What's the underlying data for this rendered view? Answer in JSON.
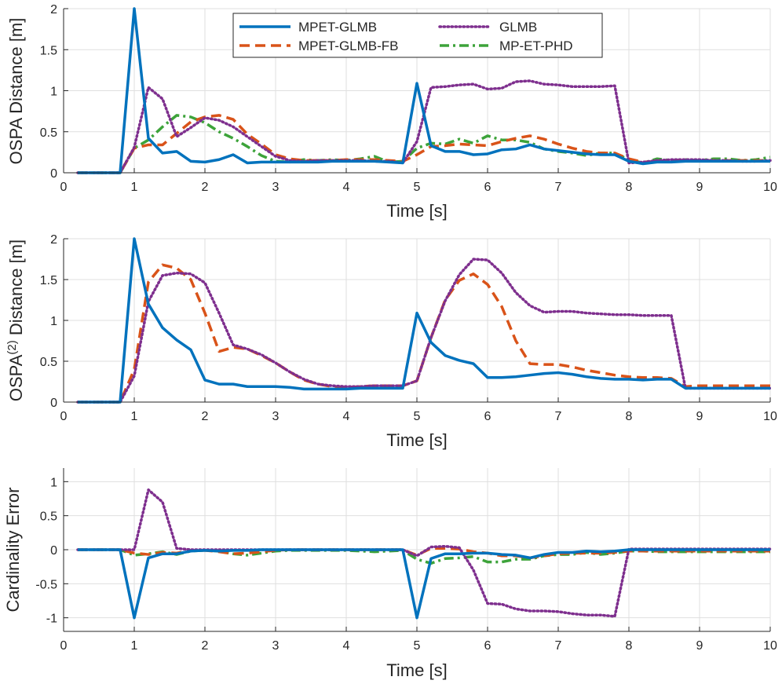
{
  "colors": {
    "mpet_glmb": "#0072BD",
    "mpet_glmb_fb": "#D95319",
    "glmb": "#7E2F8E",
    "mp_et_phd": "#3DA33A",
    "grid": "#dfdfdf",
    "axis": "#262626"
  },
  "legend": {
    "labels": [
      "MPET-GLMB",
      "GLMB",
      "MPET-GLMB-FB",
      "MP-ET-PHD"
    ]
  },
  "chart_data": [
    {
      "type": "line",
      "xlabel": "Time [s]",
      "ylabel": "OSPA Distance [m]",
      "ylabel_parts": {
        "main": "OSPA Distance [m]"
      },
      "xlim": [
        0,
        10
      ],
      "ylim": [
        0,
        2
      ],
      "xticks": [
        "0",
        "1",
        "2",
        "3",
        "4",
        "5",
        "6",
        "7",
        "8",
        "9",
        "10"
      ],
      "yticks": [
        "0",
        "0.5",
        "1",
        "1.5",
        "2"
      ],
      "ytick_values": [
        0,
        0.5,
        1,
        1.5,
        2
      ],
      "grid": true,
      "legend_position": "top-center",
      "x": [
        0.2,
        0.4,
        0.6,
        0.8,
        1.0,
        1.2,
        1.4,
        1.6,
        1.8,
        2.0,
        2.2,
        2.4,
        2.6,
        2.8,
        3.0,
        3.2,
        3.4,
        3.6,
        3.8,
        4.0,
        4.2,
        4.4,
        4.6,
        4.8,
        5.0,
        5.2,
        5.4,
        5.6,
        5.8,
        6.0,
        6.2,
        6.4,
        6.6,
        6.8,
        7.0,
        7.2,
        7.4,
        7.6,
        7.8,
        8.0,
        8.2,
        8.4,
        8.6,
        8.8,
        9.0,
        9.2,
        9.4,
        9.6,
        9.8,
        10.0
      ],
      "series": [
        {
          "name": "MPET-GLMB",
          "key": "mpet_glmb",
          "values": [
            0,
            0,
            0,
            0,
            2.0,
            0.42,
            0.24,
            0.26,
            0.14,
            0.13,
            0.16,
            0.22,
            0.12,
            0.13,
            0.13,
            0.13,
            0.13,
            0.13,
            0.14,
            0.14,
            0.14,
            0.14,
            0.13,
            0.12,
            1.09,
            0.33,
            0.26,
            0.26,
            0.22,
            0.23,
            0.28,
            0.29,
            0.34,
            0.29,
            0.27,
            0.25,
            0.23,
            0.22,
            0.22,
            0.14,
            0.11,
            0.13,
            0.13,
            0.14,
            0.14,
            0.14,
            0.14,
            0.14,
            0.14,
            0.14
          ]
        },
        {
          "name": "MPET-GLMB-FB",
          "key": "mpet_glmb_fb",
          "values": [
            0,
            0,
            0,
            0,
            0.3,
            0.34,
            0.34,
            0.48,
            0.62,
            0.68,
            0.7,
            0.65,
            0.47,
            0.35,
            0.22,
            0.17,
            0.15,
            0.15,
            0.15,
            0.16,
            0.16,
            0.16,
            0.15,
            0.14,
            0.22,
            0.32,
            0.33,
            0.35,
            0.34,
            0.33,
            0.38,
            0.42,
            0.45,
            0.41,
            0.35,
            0.3,
            0.26,
            0.24,
            0.24,
            0.17,
            0.13,
            0.14,
            0.15,
            0.15,
            0.15,
            0.15,
            0.15,
            0.15,
            0.15,
            0.15
          ]
        },
        {
          "name": "GLMB",
          "key": "glmb",
          "values": [
            0,
            0,
            0,
            0,
            0.31,
            1.04,
            0.9,
            0.44,
            0.55,
            0.67,
            0.64,
            0.56,
            0.44,
            0.32,
            0.2,
            0.15,
            0.14,
            0.15,
            0.15,
            0.15,
            0.15,
            0.14,
            0.14,
            0.12,
            0.38,
            1.04,
            1.05,
            1.07,
            1.08,
            1.02,
            1.03,
            1.11,
            1.12,
            1.08,
            1.07,
            1.05,
            1.05,
            1.05,
            1.06,
            0.12,
            0.13,
            0.15,
            0.16,
            0.16,
            0.16,
            0.15,
            0.15,
            0.14,
            0.14,
            0.15
          ]
        },
        {
          "name": "MP-ET-PHD",
          "key": "mp_et_phd",
          "values": [
            0,
            0,
            0,
            0,
            0.3,
            0.4,
            0.56,
            0.7,
            0.68,
            0.61,
            0.5,
            0.42,
            0.32,
            0.21,
            0.14,
            0.13,
            0.16,
            0.15,
            0.16,
            0.15,
            0.17,
            0.2,
            0.13,
            0.14,
            0.3,
            0.36,
            0.35,
            0.41,
            0.36,
            0.45,
            0.4,
            0.4,
            0.37,
            0.29,
            0.26,
            0.24,
            0.21,
            0.24,
            0.24,
            0.16,
            0.12,
            0.17,
            0.15,
            0.16,
            0.15,
            0.17,
            0.17,
            0.15,
            0.16,
            0.19
          ]
        }
      ]
    },
    {
      "type": "line",
      "xlabel": "Time [s]",
      "ylabel": "OSPA(2) Distance [m]",
      "ylabel_parts": {
        "pre": "OSPA",
        "sup": "(2)",
        "post": " Distance [m]"
      },
      "xlim": [
        0,
        10
      ],
      "ylim": [
        0,
        2
      ],
      "xticks": [
        "0",
        "1",
        "2",
        "3",
        "4",
        "5",
        "6",
        "7",
        "8",
        "9",
        "10"
      ],
      "yticks": [
        "0",
        "0.5",
        "1",
        "1.5",
        "2"
      ],
      "ytick_values": [
        0,
        0.5,
        1,
        1.5,
        2
      ],
      "grid": true,
      "x": [
        0.2,
        0.4,
        0.6,
        0.8,
        1.0,
        1.2,
        1.4,
        1.6,
        1.8,
        2.0,
        2.2,
        2.4,
        2.6,
        2.8,
        3.0,
        3.2,
        3.4,
        3.6,
        3.8,
        4.0,
        4.2,
        4.4,
        4.6,
        4.8,
        5.0,
        5.2,
        5.4,
        5.6,
        5.8,
        6.0,
        6.2,
        6.4,
        6.6,
        6.8,
        7.0,
        7.2,
        7.4,
        7.6,
        7.8,
        8.0,
        8.2,
        8.4,
        8.6,
        8.8,
        9.0,
        9.2,
        9.4,
        9.6,
        9.8,
        10.0
      ],
      "series": [
        {
          "name": "MPET-GLMB",
          "key": "mpet_glmb",
          "values": [
            0,
            0,
            0,
            0,
            2.0,
            1.2,
            0.91,
            0.76,
            0.64,
            0.27,
            0.22,
            0.22,
            0.19,
            0.19,
            0.19,
            0.18,
            0.16,
            0.16,
            0.16,
            0.16,
            0.17,
            0.17,
            0.17,
            0.17,
            1.09,
            0.73,
            0.57,
            0.51,
            0.47,
            0.3,
            0.3,
            0.31,
            0.33,
            0.35,
            0.36,
            0.34,
            0.31,
            0.29,
            0.28,
            0.28,
            0.27,
            0.28,
            0.28,
            0.17,
            0.17,
            0.17,
            0.17,
            0.17,
            0.17,
            0.17
          ]
        },
        {
          "name": "MPET-GLMB-FB",
          "key": "mpet_glmb_fb",
          "values": [
            0,
            0,
            0,
            0,
            0.4,
            1.47,
            1.68,
            1.64,
            1.5,
            1.09,
            0.62,
            0.67,
            0.65,
            0.57,
            0.48,
            0.37,
            0.27,
            0.22,
            0.19,
            0.18,
            0.19,
            0.2,
            0.2,
            0.2,
            0.26,
            0.79,
            1.25,
            1.49,
            1.57,
            1.44,
            1.17,
            0.75,
            0.47,
            0.46,
            0.46,
            0.43,
            0.39,
            0.36,
            0.33,
            0.31,
            0.3,
            0.3,
            0.29,
            0.19,
            0.2,
            0.2,
            0.2,
            0.2,
            0.2,
            0.2
          ]
        },
        {
          "name": "GLMB",
          "key": "glmb",
          "values": [
            0,
            0,
            0,
            0,
            0.32,
            1.23,
            1.55,
            1.58,
            1.57,
            1.46,
            1.09,
            0.7,
            0.65,
            0.58,
            0.48,
            0.37,
            0.28,
            0.22,
            0.2,
            0.19,
            0.19,
            0.2,
            0.2,
            0.2,
            0.26,
            0.79,
            1.24,
            1.56,
            1.75,
            1.74,
            1.58,
            1.34,
            1.18,
            1.1,
            1.11,
            1.11,
            1.09,
            1.08,
            1.07,
            1.07,
            1.06,
            1.06,
            1.06,
            0.17,
            0.17,
            0.17,
            0.17,
            0.17,
            0.17,
            0.17
          ]
        }
      ]
    },
    {
      "type": "line",
      "xlabel": "Time [s]",
      "ylabel": "Cardinality Error",
      "ylabel_parts": {
        "main": "Cardinality Error"
      },
      "xlim": [
        0,
        10
      ],
      "ylim": [
        -1.2,
        1.2
      ],
      "xticks": [
        "0",
        "1",
        "2",
        "3",
        "4",
        "5",
        "6",
        "7",
        "8",
        "9",
        "10"
      ],
      "yticks": [
        "-1",
        "-0.5",
        "0",
        "0.5",
        "1"
      ],
      "ytick_values": [
        -1,
        -0.5,
        0,
        0.5,
        1
      ],
      "grid": true,
      "x": [
        0.2,
        0.4,
        0.6,
        0.8,
        1.0,
        1.2,
        1.4,
        1.6,
        1.8,
        2.0,
        2.2,
        2.4,
        2.6,
        2.8,
        3.0,
        3.2,
        3.4,
        3.6,
        3.8,
        4.0,
        4.2,
        4.4,
        4.6,
        4.8,
        5.0,
        5.2,
        5.4,
        5.6,
        5.8,
        6.0,
        6.2,
        6.4,
        6.6,
        6.8,
        7.0,
        7.2,
        7.4,
        7.6,
        7.8,
        8.0,
        8.2,
        8.4,
        8.6,
        8.8,
        9.0,
        9.2,
        9.4,
        9.6,
        9.8,
        10.0
      ],
      "series": [
        {
          "name": "MPET-GLMB",
          "key": "mpet_glmb",
          "values": [
            0,
            0,
            0,
            0,
            -1.0,
            -0.12,
            -0.06,
            -0.06,
            -0.02,
            -0.01,
            -0.02,
            -0.01,
            -0.01,
            0,
            0,
            0,
            0,
            0,
            0,
            0,
            0,
            0,
            0,
            0,
            -1.0,
            -0.13,
            -0.06,
            -0.06,
            -0.05,
            -0.05,
            -0.07,
            -0.08,
            -0.12,
            -0.07,
            -0.04,
            -0.04,
            -0.02,
            -0.03,
            -0.02,
            0,
            0,
            0,
            0,
            0,
            0,
            0,
            0,
            0,
            0,
            0
          ]
        },
        {
          "name": "MPET-GLMB-FB",
          "key": "mpet_glmb_fb",
          "values": [
            0,
            0,
            0,
            0,
            -0.05,
            -0.07,
            -0.04,
            -0.05,
            -0.01,
            -0.01,
            -0.03,
            -0.06,
            -0.05,
            -0.03,
            -0.01,
            0,
            0,
            0,
            0,
            0,
            0,
            0,
            0,
            0,
            -0.08,
            0.02,
            0.02,
            0.01,
            -0.03,
            -0.05,
            -0.09,
            -0.09,
            -0.12,
            -0.09,
            -0.06,
            -0.05,
            -0.05,
            -0.05,
            -0.04,
            -0.02,
            -0.02,
            -0.02,
            -0.02,
            -0.02,
            -0.02,
            -0.02,
            -0.02,
            -0.02,
            -0.02,
            -0.02
          ]
        },
        {
          "name": "GLMB",
          "key": "glmb",
          "values": [
            0,
            0,
            0,
            0,
            0,
            0.88,
            0.7,
            0.02,
            0,
            0,
            0,
            0,
            0,
            0,
            0,
            0,
            0,
            0,
            0,
            0,
            0,
            0,
            0,
            0,
            -0.09,
            0.04,
            0.05,
            0.03,
            -0.3,
            -0.79,
            -0.8,
            -0.87,
            -0.9,
            -0.9,
            -0.91,
            -0.94,
            -0.96,
            -0.96,
            -0.98,
            0.01,
            0.01,
            0.01,
            0.01,
            0.01,
            0.01,
            0.01,
            0.01,
            0.01,
            0.01,
            0.01
          ]
        },
        {
          "name": "MP-ET-PHD",
          "key": "mp_et_phd",
          "values": [
            0,
            0,
            0,
            0,
            -0.08,
            -0.06,
            -0.03,
            -0.07,
            -0.02,
            -0.01,
            -0.02,
            -0.06,
            -0.08,
            -0.05,
            -0.02,
            -0.01,
            -0.01,
            -0.01,
            -0.01,
            -0.01,
            -0.02,
            -0.03,
            -0.02,
            -0.01,
            -0.14,
            -0.2,
            -0.13,
            -0.12,
            -0.1,
            -0.18,
            -0.18,
            -0.14,
            -0.14,
            -0.09,
            -0.07,
            -0.07,
            -0.04,
            -0.07,
            -0.05,
            -0.02,
            -0.02,
            -0.03,
            -0.03,
            -0.03,
            -0.03,
            -0.03,
            -0.03,
            -0.03,
            -0.03,
            -0.03
          ]
        }
      ]
    }
  ]
}
